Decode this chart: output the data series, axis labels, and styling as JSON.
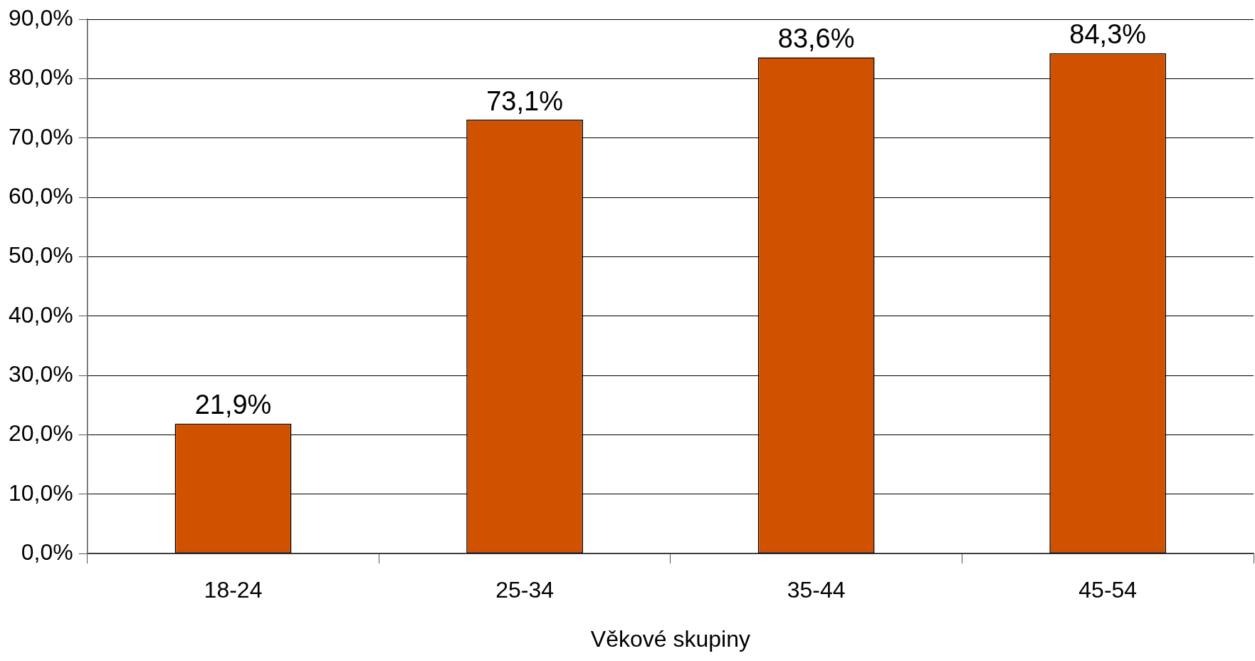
{
  "chart_data": {
    "type": "bar",
    "xlabel": "Věkové skupiny",
    "categories": [
      "18-24",
      "25-34",
      "35-44",
      "45-54"
    ],
    "values": [
      21.9,
      73.1,
      83.6,
      84.3
    ],
    "value_labels": [
      "21,9%",
      "73,1%",
      "83,6%",
      "84,3%"
    ],
    "color": "#d05200",
    "ylim": [
      0,
      90
    ],
    "yticks": [
      {
        "value": 0,
        "label": "0,0%"
      },
      {
        "value": 10,
        "label": "10,0%"
      },
      {
        "value": 20,
        "label": "20,0%"
      },
      {
        "value": 30,
        "label": "30,0%"
      },
      {
        "value": 40,
        "label": "40,0%"
      },
      {
        "value": 50,
        "label": "50,0%"
      },
      {
        "value": 60,
        "label": "60,0%"
      },
      {
        "value": 70,
        "label": "70,0%"
      },
      {
        "value": 80,
        "label": "80,0%"
      },
      {
        "value": 90,
        "label": "90,0%"
      }
    ],
    "grid": "y",
    "legend": false
  }
}
